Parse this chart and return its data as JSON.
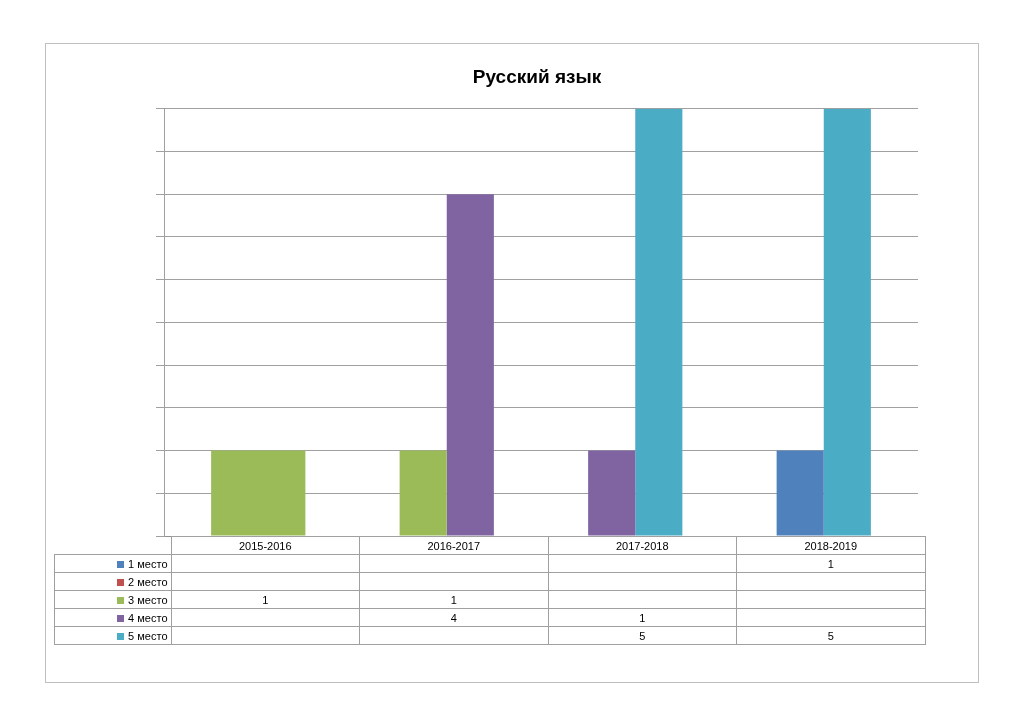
{
  "chart_data": {
    "type": "bar",
    "title": "Русский язык",
    "categories": [
      "2015-2016",
      "2016-2017",
      "2017-2018",
      "2018-2019"
    ],
    "series": [
      {
        "name": "1 место",
        "color": "#4f81bd",
        "values": [
          null,
          null,
          null,
          1
        ]
      },
      {
        "name": "2 место",
        "color": "#c0504d",
        "values": [
          null,
          null,
          null,
          null
        ]
      },
      {
        "name": "3 место",
        "color": "#9bbb59",
        "values": [
          1,
          1,
          null,
          null
        ]
      },
      {
        "name": "4 место",
        "color": "#8064a2",
        "values": [
          null,
          4,
          1,
          null
        ]
      },
      {
        "name": "5 место",
        "color": "#4bacc6",
        "values": [
          null,
          null,
          5,
          5
        ]
      }
    ],
    "ylim": [
      0,
      5
    ],
    "yticks": [
      {
        "value": 0,
        "label": null
      },
      {
        "value": 0.5,
        "label": null
      },
      {
        "value": 1,
        "label": null
      },
      {
        "value": 1.5,
        "label": null
      },
      {
        "value": 2,
        "label": null
      },
      {
        "value": 2.5,
        "label": null
      },
      {
        "value": 3,
        "label": null
      },
      {
        "value": 3.5,
        "label": null
      },
      {
        "value": 4,
        "label": null
      },
      {
        "value": 4.5,
        "label": null
      },
      {
        "value": 5,
        "label": null
      }
    ],
    "tick_labels": "x",
    "grid": "y",
    "legend": "bottom left",
    "data_labels": true
  }
}
